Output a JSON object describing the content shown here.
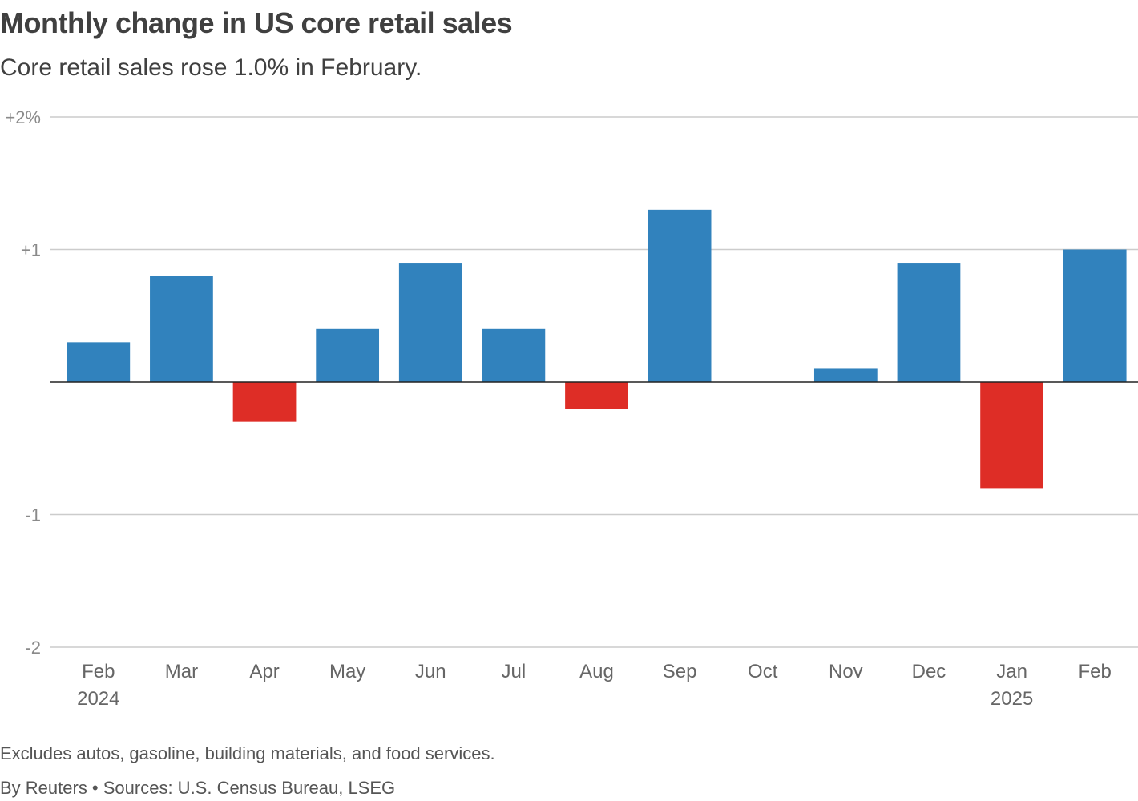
{
  "chart_data": {
    "type": "bar",
    "title": "Monthly change in US core retail sales",
    "subtitle": "Core retail sales rose 1.0% in February.",
    "categories": [
      "Feb",
      "Mar",
      "Apr",
      "May",
      "Jun",
      "Jul",
      "Aug",
      "Sep",
      "Oct",
      "Nov",
      "Dec",
      "Jan",
      "Feb"
    ],
    "year_labels": [
      "2024",
      "",
      "",
      "",
      "",
      "",
      "",
      "",
      "",
      "",
      "",
      "2025",
      ""
    ],
    "values": [
      0.3,
      0.8,
      -0.3,
      0.4,
      0.9,
      0.4,
      -0.2,
      1.3,
      0.0,
      0.1,
      0.9,
      -0.8,
      1.0
    ],
    "ylim": [
      -2,
      2
    ],
    "yticks": [
      2,
      1,
      -1,
      -2
    ],
    "ytick_labels": [
      "+2%",
      "+1",
      "-1",
      "-2"
    ],
    "xlabel": "",
    "ylabel": "",
    "grid": true,
    "positive_color": "#3182bd",
    "negative_color": "#de2d26"
  },
  "footer": {
    "note": "Excludes autos, gasoline, building materials, and food services.",
    "source": "By Reuters • Sources: U.S. Census Bureau, LSEG"
  }
}
